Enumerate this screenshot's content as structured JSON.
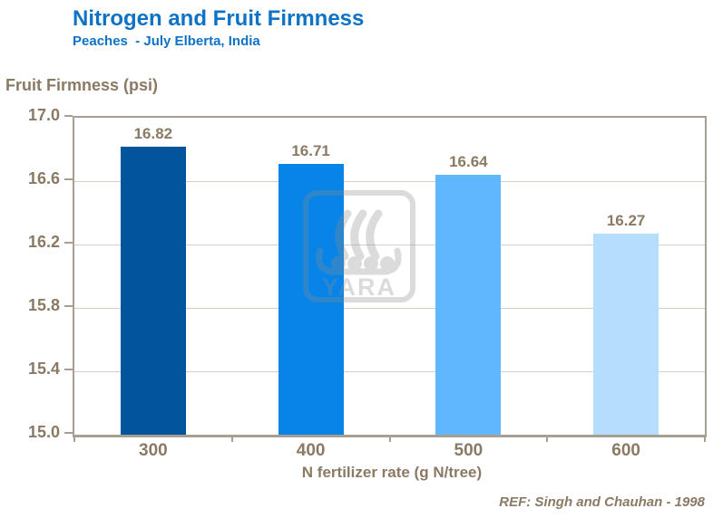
{
  "header": {
    "title": "Nitrogen and Fruit Firmness",
    "subtitle": "Peaches  - July Elberta, India"
  },
  "footer": {
    "reference": "REF: Singh and Chauhan - 1998"
  },
  "watermark": {
    "name": "yara-viking-ship-logo",
    "label": "YARA"
  },
  "colors": {
    "title_blue": "#0e72c6",
    "axis_text_taupe": "#8a7a64",
    "axis_line": "#a89e92",
    "gridline": "#d6cfc7",
    "bars": [
      "#02559c",
      "#0884e8",
      "#5fb8fb",
      "#b5defc"
    ]
  },
  "chart_data": {
    "type": "bar",
    "categories": [
      "300",
      "400",
      "500",
      "600"
    ],
    "values": [
      16.82,
      16.71,
      16.64,
      16.27
    ],
    "value_labels": [
      "16.82",
      "16.71",
      "16.64",
      "16.27"
    ],
    "title": "Nitrogen and Fruit Firmness",
    "subtitle": "Peaches  - July Elberta, India",
    "xlabel": "N fertilizer rate (g N/tree)",
    "ylabel": "Fruit Firmness (psi)",
    "ylim": [
      15.0,
      17.0
    ],
    "yticks": [
      17.0,
      16.6,
      16.2,
      15.8,
      15.4,
      15.0
    ],
    "ytick_labels": [
      "17.0",
      "16.6",
      "16.2",
      "15.8",
      "15.4",
      "15.0"
    ],
    "grid": "horizontal",
    "legend": "none"
  }
}
